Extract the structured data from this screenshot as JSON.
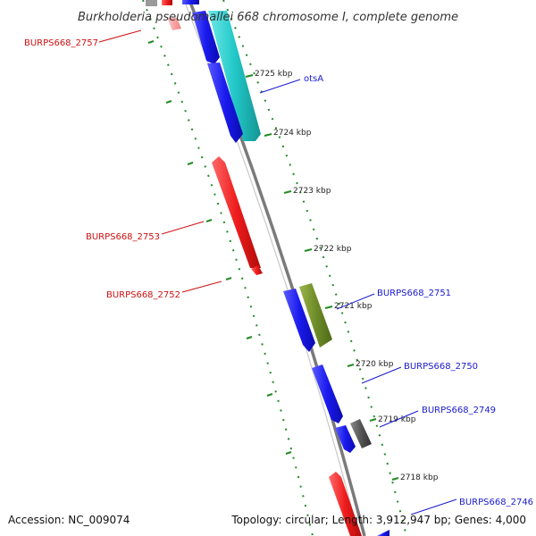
{
  "title": "Burkholderia pseudomallei 668 chromosome I, complete genome",
  "accession": "Accession: NC_009074",
  "summary": "Topology: circular; Length: 3,912,947 bp; Genes: 4,000",
  "colors": {
    "forward_gene": "#1a1aee",
    "reverse_gene": "#ee1c1c",
    "cyan_gene": "#22c8c8",
    "olive_gene": "#6e8c28",
    "grey_gene": "#555555",
    "backbone": "#888888",
    "tick": "#228b22",
    "forward_label": "#1a1acc",
    "reverse_label": "#cc1111"
  },
  "scale": {
    "ticks": [
      {
        "label": "2725 kbp"
      },
      {
        "label": "2724 kbp"
      },
      {
        "label": "2723 kbp"
      },
      {
        "label": "2722 kbp"
      },
      {
        "label": "2721 kbp"
      },
      {
        "label": "2720 kbp"
      },
      {
        "label": "2719 kbp"
      },
      {
        "label": "2718 kbp"
      }
    ]
  },
  "gene_labels": {
    "burps668_2757": "BURPS668_2757",
    "otsA": "otsA",
    "burps668_2753": "BURPS668_2753",
    "burps668_2752": "BURPS668_2752",
    "burps668_2751": "BURPS668_2751",
    "burps668_2750": "BURPS668_2750",
    "burps668_2749": "BURPS668_2749",
    "burps668_2746": "BURPS668_2746"
  }
}
